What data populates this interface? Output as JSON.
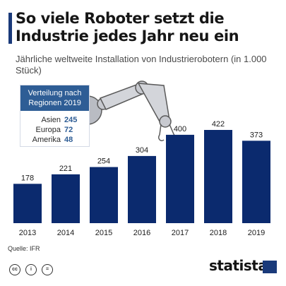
{
  "header": {
    "title": "So viele Roboter setzt die Industrie jedes Jahr neu ein",
    "subtitle": "Jährliche weltweite Installation von Industrierobotern (in 1.000 Stück)"
  },
  "legend_box": {
    "title": "Verteilung nach Regionen 2019",
    "rows": [
      {
        "name": "Asien",
        "value": "245"
      },
      {
        "name": "Europa",
        "value": "72"
      },
      {
        "name": "Amerika",
        "value": "48"
      }
    ]
  },
  "chart_data": {
    "type": "bar",
    "categories": [
      "2013",
      "2014",
      "2015",
      "2016",
      "2017",
      "2018",
      "2019"
    ],
    "values": [
      178,
      221,
      254,
      304,
      400,
      422,
      373
    ],
    "title": "So viele Roboter setzt die Industrie jedes Jahr neu ein",
    "subtitle": "Jährliche weltweite Installation von Industrierobotern (in 1.000 Stück)",
    "xlabel": "",
    "ylabel": "",
    "ylim": [
      0,
      422
    ],
    "grid": false,
    "bar_color": "#0b2a6e",
    "legend": "none"
  },
  "footer": {
    "source": "Quelle: IFR",
    "brand": "statista",
    "license_icons": [
      "creative-commons-icon",
      "attribution-icon",
      "no-derivatives-icon"
    ]
  },
  "colors": {
    "accent": "#1a3a7a",
    "legend_header": "#2e5d95",
    "bar": "#0b2a6e"
  }
}
